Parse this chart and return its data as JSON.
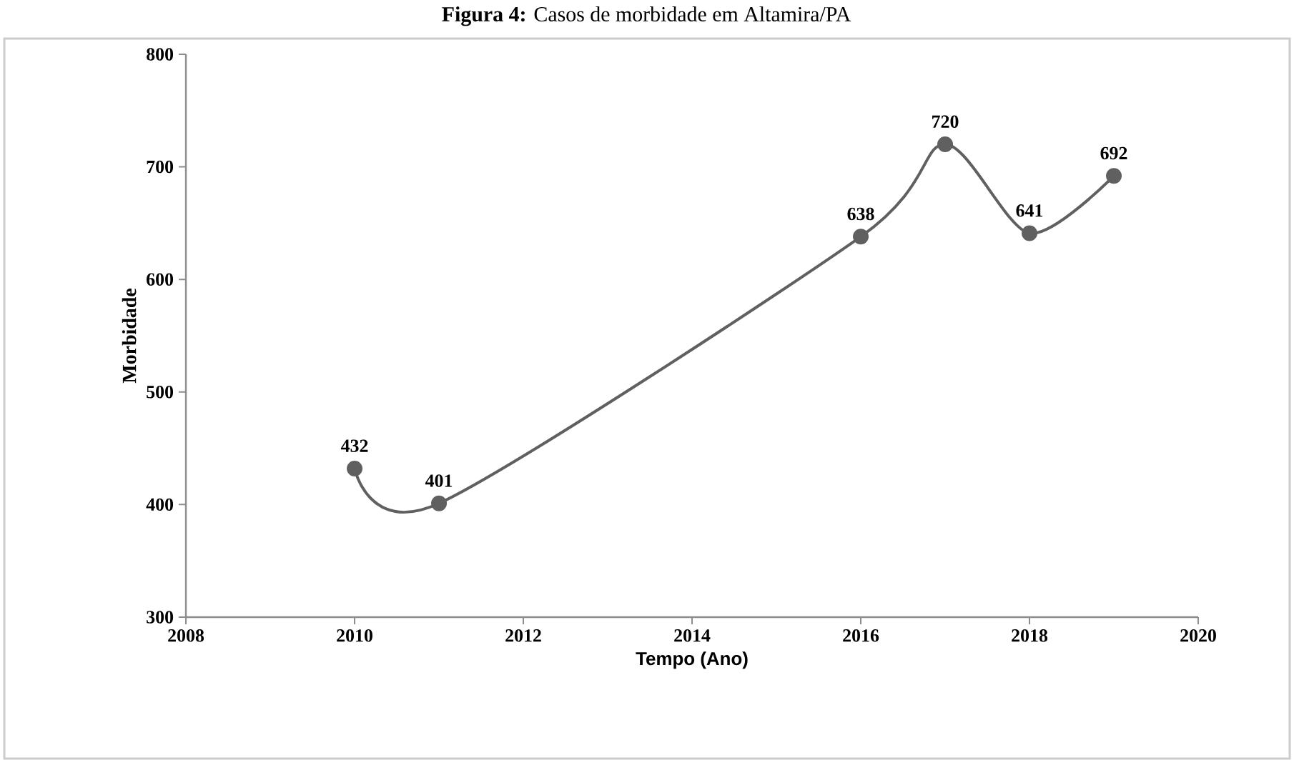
{
  "chart_data": {
    "type": "line",
    "title": "**Figura 4:** Casos de morbidade em Altamira/PA",
    "xlabel": "Tempo (Ano)",
    "ylabel": "Morbidade",
    "x": [
      2010,
      2011,
      2016,
      2017,
      2018,
      2019
    ],
    "series": [
      {
        "color": "#606060",
        "values": [
          432,
          401,
          638,
          720,
          641,
          692
        ]
      }
    ],
    "xlim": [
      2008,
      2020
    ],
    "xticks": [
      2008,
      2010,
      2012,
      2014,
      2016,
      2018,
      2020
    ],
    "ylim": [
      300,
      800
    ],
    "yticks": [
      300,
      400,
      500,
      600,
      700,
      800
    ],
    "grid": false,
    "marker": "circle",
    "line_style": "solid",
    "data_labels": true
  }
}
